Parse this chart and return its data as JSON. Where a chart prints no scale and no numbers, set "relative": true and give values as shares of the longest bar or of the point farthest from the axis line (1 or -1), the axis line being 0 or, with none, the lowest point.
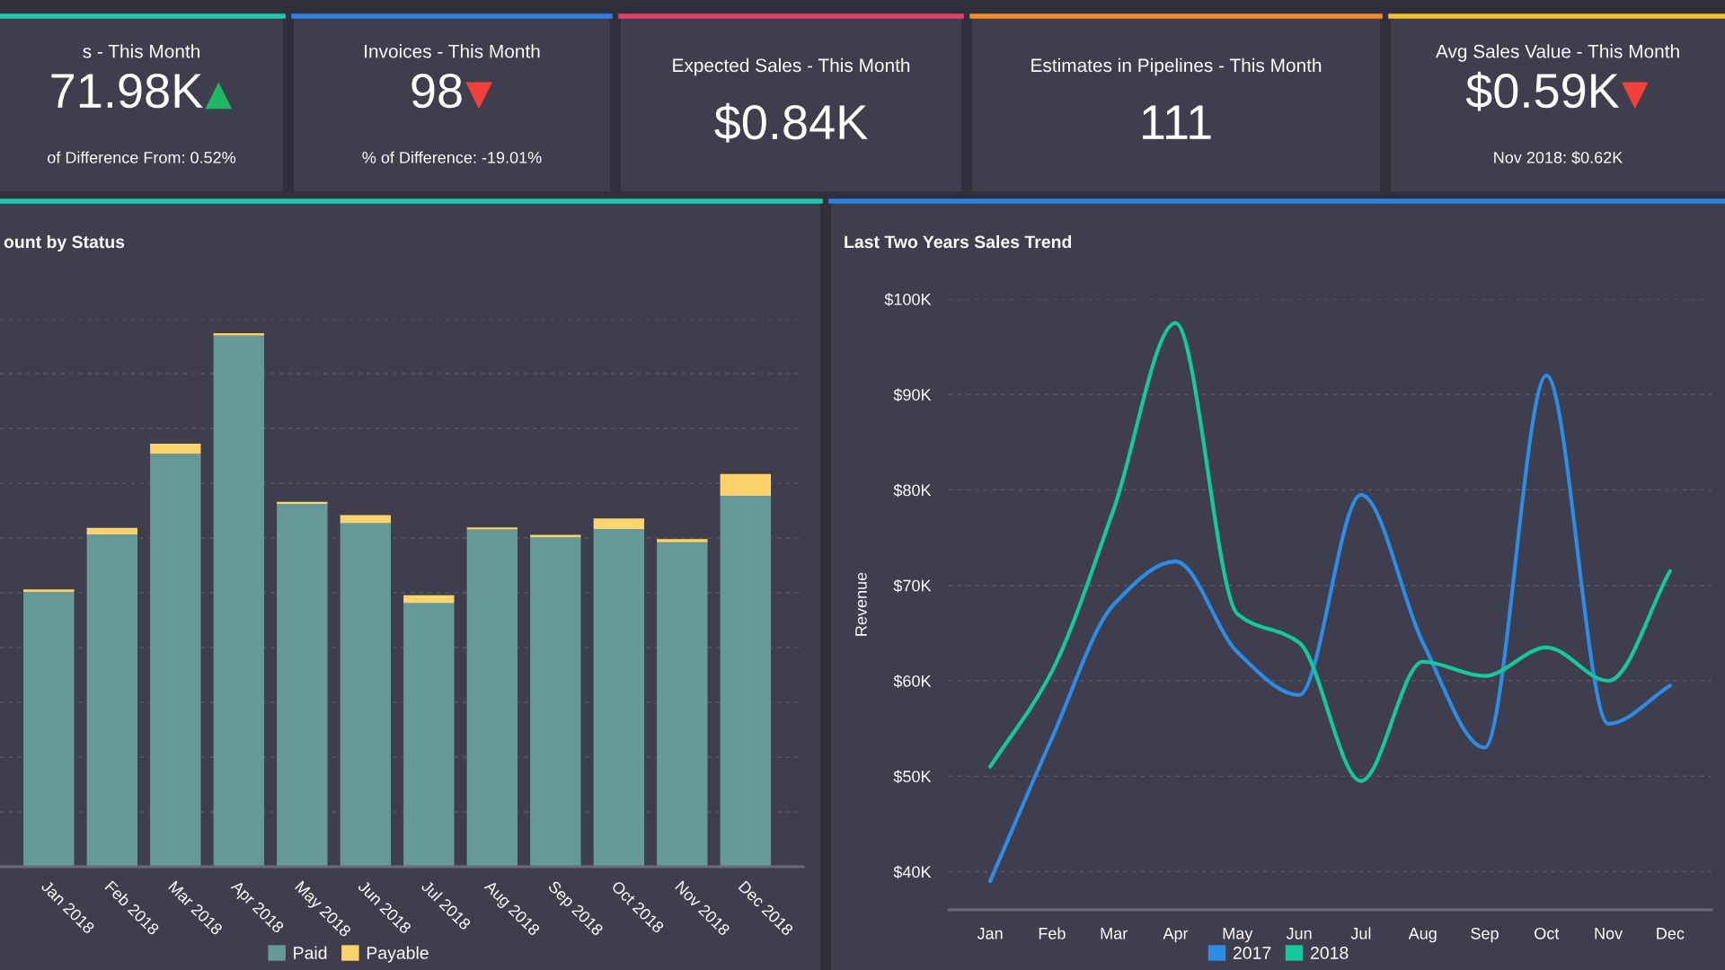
{
  "chart_data": [
    {
      "type": "other",
      "title": "s - This Month",
      "annotations": [
        "71.98K",
        "▲",
        "of Difference From: 0.52%"
      ],
      "color": "#1db964"
    },
    {
      "type": "other",
      "title": "Invoices - This Month",
      "annotations": [
        "98",
        "▼",
        "% of Difference: -19.01%"
      ],
      "color": "#f0413c"
    },
    {
      "type": "other",
      "title": "Expected Sales - This Month",
      "annotations": [
        "$0.84K"
      ]
    },
    {
      "type": "other",
      "title": "Estimates in Pipelines - This Month",
      "annotations": [
        "111"
      ]
    },
    {
      "type": "other",
      "title": "Avg Sales Value - This Month",
      "annotations": [
        "$0.59K",
        "▼",
        "Nov 2018: $0.62K"
      ],
      "color": "#f0413c"
    },
    {
      "type": "bar",
      "title": "ount by Status",
      "relative": true,
      "stacked": true,
      "grid": "y",
      "legend": "bottom",
      "categories": [
        "Jan 2018",
        "Feb 2018",
        "Mar 2018",
        "Apr 2018",
        "May 2018",
        "Jun 2018",
        "Jul 2018",
        "Aug 2018",
        "Sep 2018",
        "Oct 2018",
        "Nov 2018",
        "Dec 2018"
      ],
      "series": [
        {
          "name": "Paid",
          "color": "#669a9a",
          "values": [
            0.515,
            0.623,
            0.774,
            0.996,
            0.68,
            0.644,
            0.494,
            0.632,
            0.618,
            0.633,
            0.608,
            0.695
          ]
        },
        {
          "name": "Payable",
          "color": "#fdd36e",
          "values": [
            0.005,
            0.012,
            0.019,
            0.004,
            0.004,
            0.015,
            0.015,
            0.004,
            0.004,
            0.02,
            0.006,
            0.041
          ]
        }
      ]
    },
    {
      "type": "line",
      "title": "Last Two Years Sales Trend",
      "ylabel": "Revenue",
      "grid": "y",
      "legend": "bottom",
      "marker": "none",
      "line_style": "solid",
      "categories": [
        "Jan",
        "Feb",
        "Mar",
        "Apr",
        "May",
        "Jun",
        "Jul",
        "Aug",
        "Sep",
        "Oct",
        "Nov",
        "Dec"
      ],
      "ylim": [
        36,
        100
      ],
      "yticks": [
        {
          "value": 40,
          "label": "$40K"
        },
        {
          "value": 50,
          "label": "$50K"
        },
        {
          "value": 60,
          "label": "$60K"
        },
        {
          "value": 70,
          "label": "$70K"
        },
        {
          "value": 80,
          "label": "$80K"
        },
        {
          "value": 90,
          "label": "$90K"
        },
        {
          "value": 100,
          "label": "$100K"
        }
      ],
      "series": [
        {
          "name": "2017",
          "color": "#2d8ce6",
          "values": [
            39,
            54,
            68,
            72.5,
            63,
            58.5,
            79.5,
            64,
            53,
            92,
            55.5,
            59.5
          ]
        },
        {
          "name": "2018",
          "color": "#14c8a0",
          "values": [
            51,
            61,
            78,
            97.5,
            67,
            64,
            49.5,
            62,
            60.5,
            63.5,
            60,
            71.5
          ]
        }
      ]
    }
  ]
}
